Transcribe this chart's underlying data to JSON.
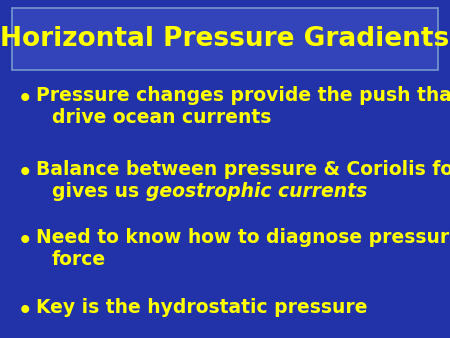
{
  "title": "Horizontal Pressure Gradients",
  "title_color": "#FFFF00",
  "title_fontsize": 19,
  "background_color": "#2233AA",
  "box_facecolor": "#3344BB",
  "box_edgecolor": "#7799CC",
  "text_color": "#FFFF00",
  "bullet_fontsize": 13.5,
  "figwidth": 4.5,
  "figheight": 3.38,
  "dpi": 100,
  "bullets": [
    {
      "lines": [
        {
          "text": "Pressure changes provide the push that",
          "italic": false
        },
        {
          "text": "drive ocean currents",
          "italic": false
        }
      ]
    },
    {
      "lines": [
        {
          "text": "Balance between pressure & Coriolis forces",
          "italic": false
        },
        {
          "text": [
            {
              "text": "gives us ",
              "italic": false
            },
            {
              "text": "geostrophic currents",
              "italic": true
            }
          ]
        }
      ]
    },
    {
      "lines": [
        {
          "text": "Need to know how to diagnose pressure",
          "italic": false
        },
        {
          "text": "force",
          "italic": false
        }
      ]
    },
    {
      "lines": [
        {
          "text": "Key is the hydrostatic pressure",
          "italic": false
        }
      ]
    }
  ]
}
